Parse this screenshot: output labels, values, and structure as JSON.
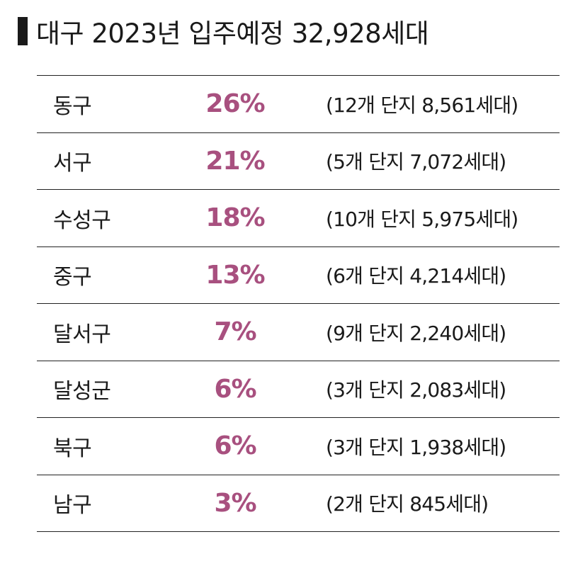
{
  "title": "대구 2023년 입주예정 32,928세대",
  "colors": {
    "accent": "#a8507f",
    "text": "#1a1a1a",
    "rule": "#222222"
  },
  "chart_data": {
    "type": "table",
    "title": "대구 2023년 입주예정 32,928세대",
    "rows": [
      {
        "region": "동구",
        "percent": "26%",
        "detail": "(12개 단지 8,561세대)"
      },
      {
        "region": "서구",
        "percent": "21%",
        "detail": "(5개 단지 7,072세대)"
      },
      {
        "region": "수성구",
        "percent": "18%",
        "detail": "(10개 단지 5,975세대)"
      },
      {
        "region": "중구",
        "percent": "13%",
        "detail": "(6개 단지 4,214세대)"
      },
      {
        "region": "달서구",
        "percent": "7%",
        "detail": "(9개 단지 2,240세대)"
      },
      {
        "region": "달성군",
        "percent": "6%",
        "detail": "(3개 단지 2,083세대)"
      },
      {
        "region": "북구",
        "percent": "6%",
        "detail": "(3개 단지 1,938세대)"
      },
      {
        "region": "남구",
        "percent": "3%",
        "detail": "(2개 단지 845세대)"
      }
    ]
  }
}
